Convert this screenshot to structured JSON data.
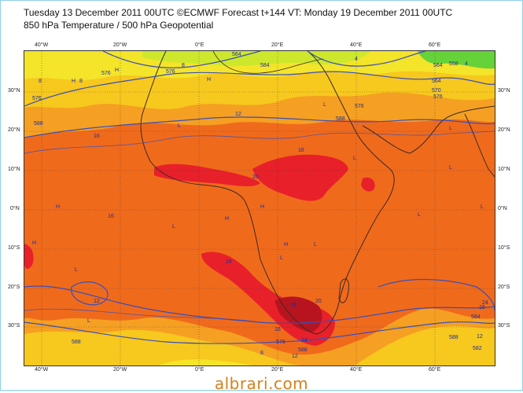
{
  "header": {
    "title": "Tuesday 13 December 2011 00UTC ©ECMWF Forecast t+144 VT: Monday 19 December 2011 00UTC",
    "subtitle": "850 hPa Temperature / 500 hPa Geopotential"
  },
  "axes": {
    "lon_labels": [
      "40°W",
      "20°W",
      "0°E",
      "20°E",
      "40°E",
      "60°E"
    ],
    "lat_labels_left": [
      "30°N",
      "20°N",
      "10°N",
      "0°N",
      "10°S",
      "20°S",
      "30°S"
    ],
    "lat_labels_right": [
      "30°N",
      "20°N",
      "10°N",
      "0°N",
      "10°S",
      "20°S",
      "30°S"
    ]
  },
  "contour_labels": {
    "temperature": [
      "8",
      "12",
      "16",
      "16",
      "16",
      "20",
      "24",
      "24",
      "28",
      "20",
      "24",
      "16",
      "12",
      "8",
      "4",
      "12",
      "16",
      "12",
      "8",
      "4",
      "8"
    ],
    "geopotential": [
      "576",
      "576",
      "564",
      "588",
      "588",
      "576",
      "584",
      "564",
      "576",
      "588",
      "576",
      "588",
      "588",
      "584",
      "576",
      "570",
      "582",
      "558",
      "564"
    ]
  },
  "pressure_labels": [
    "H",
    "H",
    "H",
    "L",
    "L",
    "L",
    "L",
    "L",
    "H",
    "H",
    "L",
    "L",
    "L",
    "L",
    "H",
    "H",
    "L",
    "L",
    "H",
    "L"
  ],
  "colors": {
    "hot_red": "#e8202a",
    "deep_red": "#b81420",
    "orange": "#f06a1c",
    "orange_light": "#f5a022",
    "yellow_orange": "#f7c81e",
    "yellow": "#f4e42a",
    "green_yellow": "#cde82c",
    "green": "#66d23a",
    "contour_blue": "#3a4fb8",
    "coast": "#3a2a22"
  },
  "watermark": "albrari.com"
}
